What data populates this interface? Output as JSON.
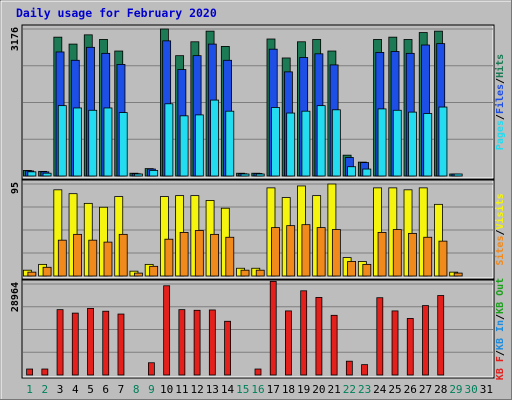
{
  "chart_data": {
    "type": "bar",
    "title": "Daily usage for February 2020",
    "days": [
      1,
      2,
      3,
      4,
      5,
      6,
      7,
      8,
      9,
      10,
      11,
      12,
      13,
      14,
      15,
      16,
      17,
      18,
      19,
      20,
      21,
      22,
      23,
      24,
      25,
      26,
      27,
      28,
      29,
      30,
      31
    ],
    "weekend_days": [
      1,
      2,
      8,
      9,
      15,
      16,
      22,
      23,
      29,
      30
    ],
    "colors": {
      "background": "#bdbdbd",
      "title": "#0000cc",
      "weekday_label": "#000000",
      "weekend_label": "#00805a",
      "hits": "#1c7a55",
      "files": "#1d4ee6",
      "pages": "#24dcf0",
      "visits": "#f4f40e",
      "sites": "#f08a1c",
      "kbin": "#1d8cde",
      "kbout": "#1ea01e",
      "kf": "#e4201c"
    },
    "panels": [
      {
        "id": "hits-files-pages",
        "ymax_label": "3176",
        "ymax": 3176,
        "legend": [
          {
            "label": "Pages",
            "color": "#24dcf0"
          },
          {
            "label": "/",
            "color": "#000000"
          },
          {
            "label": "Files",
            "color": "#1d4ee6"
          },
          {
            "label": "/",
            "color": "#000000"
          },
          {
            "label": "Hits",
            "color": "#1c7a55"
          }
        ],
        "series": [
          {
            "name": "Hits",
            "color": "#1c7a55",
            "values": [
              120,
              100,
              3000,
              2850,
              3050,
              2950,
              2700,
              60,
              160,
              3176,
              2600,
              2900,
              3130,
              2800,
              60,
              60,
              2960,
              2550,
              2900,
              2950,
              2700,
              450,
              300,
              2950,
              3000,
              2950,
              3100,
              3130,
              30,
              0,
              0
            ]
          },
          {
            "name": "Files",
            "color": "#1d4ee6",
            "values": [
              110,
              90,
              2680,
              2500,
              2780,
              2650,
              2410,
              50,
              150,
              2920,
              2300,
              2600,
              2850,
              2500,
              50,
              55,
              2740,
              2250,
              2560,
              2640,
              2400,
              400,
              290,
              2670,
              2690,
              2650,
              2830,
              2860,
              25,
              0,
              0
            ]
          },
          {
            "name": "Pages",
            "color": "#24dcf0",
            "values": [
              90,
              60,
              1520,
              1470,
              1420,
              1470,
              1370,
              30,
              120,
              1560,
              1300,
              1320,
              1640,
              1400,
              30,
              40,
              1480,
              1360,
              1400,
              1520,
              1430,
              200,
              150,
              1450,
              1420,
              1380,
              1350,
              1490,
              10,
              0,
              0
            ]
          }
        ]
      },
      {
        "id": "visits-sites",
        "ymax_label": "95",
        "ymax": 95,
        "legend": [
          {
            "label": "Sites",
            "color": "#f08a1c"
          },
          {
            "label": "/",
            "color": "#000000"
          },
          {
            "label": "Visits",
            "color": "#f4f40e"
          }
        ],
        "series": [
          {
            "name": "Visits",
            "color": "#f4f40e",
            "values": [
              6,
              12,
              89,
              85,
              75,
              71,
              82,
              5,
              12,
              82,
              83,
              83,
              78,
              70,
              8,
              8,
              91,
              81,
              93,
              83,
              95,
              19,
              15,
              91,
              91,
              89,
              91,
              74,
              4,
              0,
              0
            ]
          },
          {
            "name": "Sites",
            "color": "#f08a1c",
            "values": [
              4,
              9,
              37,
              43,
              37,
              35,
              43,
              3,
              10,
              38,
              45,
              47,
              43,
              40,
              6,
              6,
              50,
              52,
              53,
              50,
              48,
              15,
              12,
              45,
              48,
              44,
              40,
              36,
              3,
              0,
              0
            ]
          }
        ]
      },
      {
        "id": "kilobytes",
        "ymax_label": "28964",
        "ymax": 28964,
        "legend": [
          {
            "label": "KB F",
            "color": "#e4201c"
          },
          {
            "label": "/",
            "color": "#000000"
          },
          {
            "label": "KB In",
            "color": "#1d8cde"
          },
          {
            "label": "/",
            "color": "#000000"
          },
          {
            "label": "KB Out",
            "color": "#1ea01e"
          }
        ],
        "series": [
          {
            "name": "KB F",
            "color": "#e4201c",
            "values": [
              1900,
              1900,
              20800,
              19700,
              21200,
              20300,
              19400,
              0,
              3900,
              28400,
              20800,
              20600,
              20700,
              17100,
              0,
              1900,
              29800,
              20400,
              26800,
              24700,
              19000,
              4400,
              3300,
              24600,
              20400,
              18000,
              22100,
              25300,
              0,
              0,
              0
            ]
          }
        ]
      }
    ]
  }
}
